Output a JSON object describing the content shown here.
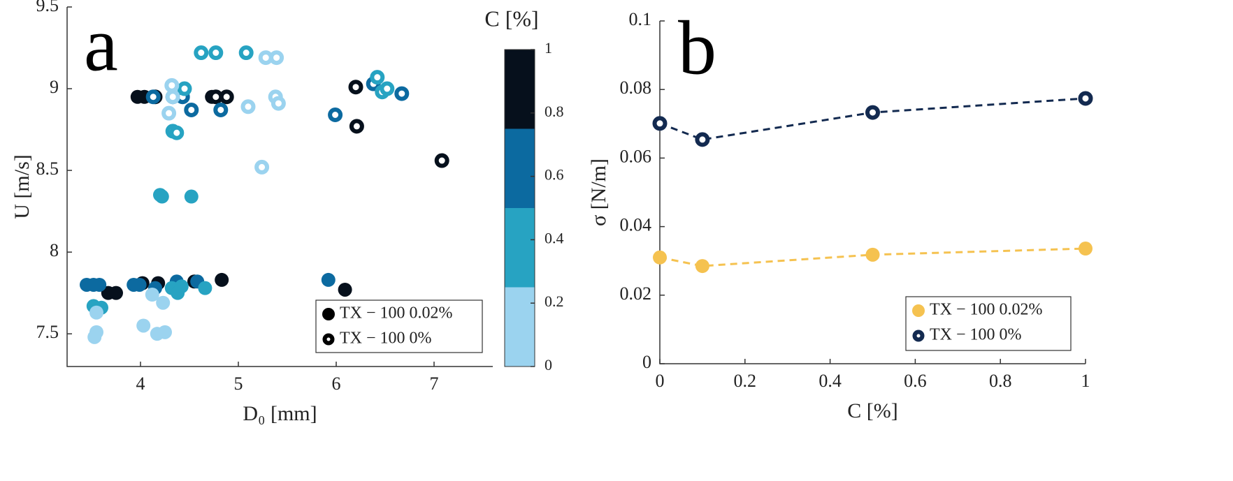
{
  "chart_data": [
    {
      "type": "scatter",
      "panel_label": "a",
      "xlabel": "D₀ [mm]",
      "ylabel": "U [m/s]",
      "xlim": [
        3.25,
        7.6
      ],
      "ylim": [
        7.3,
        9.5
      ],
      "xticks": [
        4,
        5,
        6,
        7
      ],
      "yticks": [
        7.5,
        8,
        8.5,
        9,
        9.5
      ],
      "legend": "lower right",
      "series": [
        {
          "name": "TX − 100  0.02%",
          "marker": "filled",
          "x": [
            3.97,
            4.04,
            4.73,
            4.02,
            4.18,
            4.55,
            4.83,
            3.67,
            3.75,
            6.09,
            3.45,
            3.52,
            3.58,
            3.93,
            3.99,
            4.15,
            4.37,
            4.58,
            5.92,
            4.2,
            4.22,
            4.52,
            3.52,
            3.6,
            4.32,
            4.38,
            4.42,
            4.66,
            3.55,
            3.55,
            3.53,
            4.03,
            4.17,
            4.25,
            4.23,
            4.12
          ],
          "y": [
            8.95,
            8.95,
            8.95,
            7.81,
            7.81,
            7.82,
            7.83,
            7.75,
            7.75,
            7.77,
            7.8,
            7.8,
            7.8,
            7.8,
            7.8,
            7.78,
            7.82,
            7.82,
            7.83,
            8.35,
            8.34,
            8.34,
            7.67,
            7.66,
            7.78,
            7.75,
            7.79,
            7.78,
            7.63,
            7.51,
            7.48,
            7.55,
            7.5,
            7.51,
            7.69,
            7.74
          ],
          "colors": [
            "#06101c",
            "#06101c",
            "#06101c",
            "#06101c",
            "#06101c",
            "#06101c",
            "#06101c",
            "#06101c",
            "#06101c",
            "#06101c",
            "#0c6aa0",
            "#0c6aa0",
            "#0c6aa0",
            "#0c6aa0",
            "#0c6aa0",
            "#0c6aa0",
            "#0c6aa0",
            "#0c6aa0",
            "#0c6aa0",
            "#27a3c2",
            "#27a3c2",
            "#27a3c2",
            "#27a3c2",
            "#27a3c2",
            "#27a3c2",
            "#27a3c2",
            "#27a3c2",
            "#27a3c2",
            "#9bd3ef",
            "#9bd3ef",
            "#9bd3ef",
            "#9bd3ef",
            "#9bd3ef",
            "#9bd3ef",
            "#9bd3ef",
            "#9bd3ef"
          ]
        },
        {
          "name": "TX − 100  0%",
          "marker": "open",
          "x": [
            4.15,
            4.77,
            4.88,
            6.2,
            6.21,
            7.08,
            4.13,
            4.33,
            4.43,
            4.52,
            4.82,
            5.99,
            6.38,
            6.67,
            4.62,
            4.77,
            5.08,
            4.45,
            4.33,
            4.37,
            6.42,
            6.47,
            6.52,
            5.28,
            5.39,
            4.32,
            4.29,
            5.1,
            5.38,
            5.41,
            5.24,
            4.33
          ],
          "y": [
            8.95,
            8.95,
            8.95,
            9.01,
            8.77,
            8.56,
            8.95,
            8.95,
            8.95,
            8.87,
            8.87,
            8.84,
            9.03,
            8.97,
            9.22,
            9.22,
            9.22,
            9.0,
            8.74,
            8.73,
            9.07,
            8.98,
            9.0,
            9.19,
            9.19,
            9.02,
            8.85,
            8.89,
            8.95,
            8.91,
            8.52,
            8.95
          ],
          "colors": [
            "#06101c",
            "#06101c",
            "#06101c",
            "#06101c",
            "#06101c",
            "#06101c",
            "#0c6aa0",
            "#0c6aa0",
            "#0c6aa0",
            "#0c6aa0",
            "#0c6aa0",
            "#0c6aa0",
            "#0c6aa0",
            "#0c6aa0",
            "#27a3c2",
            "#27a3c2",
            "#27a3c2",
            "#27a3c2",
            "#27a3c2",
            "#27a3c2",
            "#27a3c2",
            "#27a3c2",
            "#27a3c2",
            "#9bd3ef",
            "#9bd3ef",
            "#9bd3ef",
            "#9bd3ef",
            "#9bd3ef",
            "#9bd3ef",
            "#9bd3ef",
            "#9bd3ef",
            "#9bd3ef"
          ]
        }
      ],
      "colorbar": {
        "label": "C  [%]",
        "lim": [
          0,
          1
        ],
        "ticks": [
          0,
          0.2,
          0.4,
          0.6,
          0.8,
          1
        ],
        "colors": [
          "#9bd3ef",
          "#27a3c2",
          "#0c6aa0",
          "#06101c"
        ]
      }
    },
    {
      "type": "line",
      "panel_label": "b",
      "xlabel": "C [%]",
      "ylabel": "σ [N/m]",
      "xlim": [
        0,
        1
      ],
      "ylim": [
        0,
        0.1
      ],
      "xticks": [
        0,
        0.2,
        0.4,
        0.6,
        0.8,
        1
      ],
      "yticks": [
        0,
        0.02,
        0.04,
        0.06,
        0.08,
        0.1
      ],
      "legend": "lower right",
      "x": [
        0,
        0.1,
        0.5,
        1
      ],
      "series": [
        {
          "name": "TX − 100 0.02%",
          "marker": "filled",
          "color": "#f5c250",
          "values": [
            0.031,
            0.0285,
            0.0318,
            0.0336
          ]
        },
        {
          "name": "TX − 100 0%",
          "marker": "open",
          "color": "#132a50",
          "values": [
            0.0701,
            0.0654,
            0.0733,
            0.0774
          ]
        }
      ]
    }
  ]
}
